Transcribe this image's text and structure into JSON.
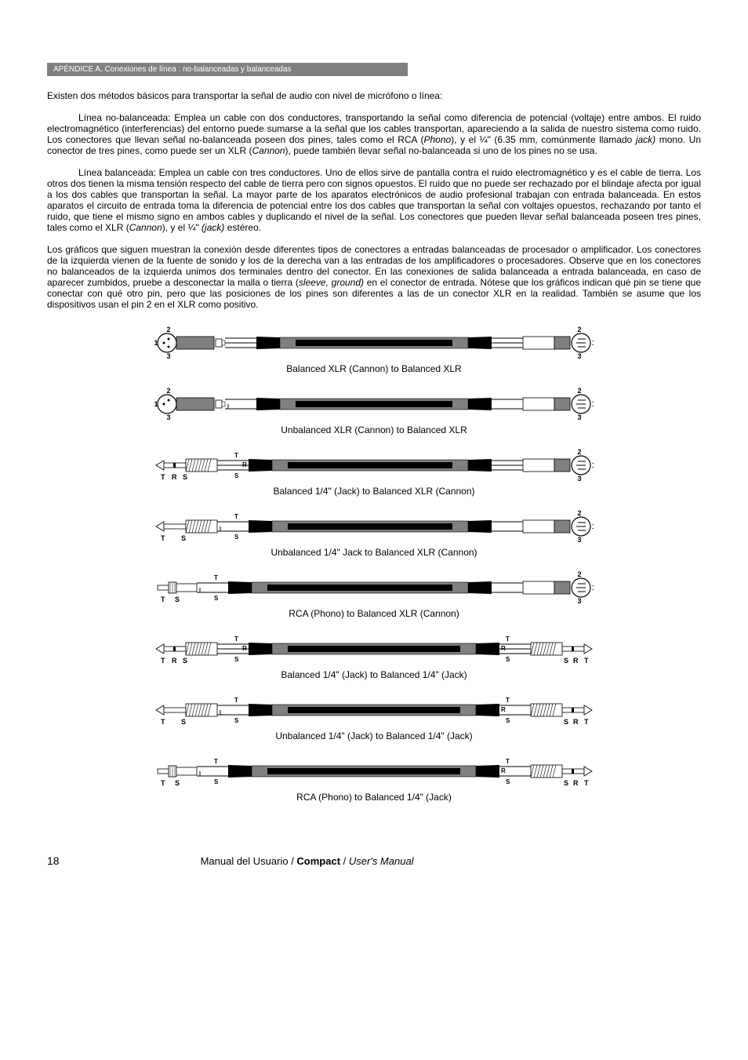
{
  "header": {
    "title": "APÉNDICE A. Conexiones de línea : no-balanceadas y balanceadas"
  },
  "intro": "Existen dos métodos básicos para transportar la señal de audio con nivel de micrófono o línea:",
  "para1_a": "Línea no-balanceada: Emplea un cable con dos conductores, transportando la señal como diferencia de potencial (voltaje) entre ambos. El ruido electromagnético (interferencias) del entorno puede sumarse a la señal que los cables transportan, apareciendo a la salida de nuestro sistema como ruido. Los conectores que llevan señal no-balanceada poseen dos pines, tales como el RCA (",
  "para1_phono": "Phono",
  "para1_b": "), y el ¼\" (6.35 mm, comúnmente llamado ",
  "para1_jack": "jack)",
  "para1_c": " mono. Un conector de tres pines, como puede ser un XLR (",
  "para1_cannon": "Cannon",
  "para1_d": "), puede también llevar señal no-balanceada si uno de los pines no se usa.",
  "para2_a": "Línea balanceada: Emplea un cable con tres conductores. Uno de ellos sirve de pantalla contra el ruido electromagnético y es el cable de tierra. Los otros dos tienen la misma tensión respecto del cable de tierra pero con signos opuestos. El ruido que no puede ser rechazado por el blindaje afecta por igual a los dos cables que transportan la señal. La mayor parte de los aparatos electrónicos de audio profesional trabajan con entrada balanceada. En estos aparatos el circuito de entrada toma la diferencia de potencial entre los dos cables que transportan la señal con voltajes opuestos, rechazando por tanto el ruido, que tiene el mismo signo en ambos cables y duplicando el nivel de la señal. Los conectores que pueden llevar señal balanceada poseen tres pines, tales como el XLR (",
  "para2_cannon": "Cannon",
  "para2_b": "), y el ¼\" ",
  "para2_jack": "(jack)",
  "para2_c": " estéreo.",
  "para3_a": "Los gráficos que siguen muestran la conexión desde diferentes tipos de conectores a entradas balanceadas de procesador o amplificador. Los conectores de la izquierda vienen de la fuente de sonido y los de la derecha van a las entradas de los amplificadores o procesadores. Observe que en los conectores no balanceados de la izquierda unimos dos terminales dentro del conector. En las conexiones de salida balanceada a entrada balanceada, en caso de aparecer zumbidos, pruebe a desconectar la malla o tierra (",
  "para3_sleeve": "sleeve, ground)",
  "para3_b": " en el conector de entrada. Nótese que los gráficos indican qué pin se tiene que conectar con qué otro pin, pero que las posiciones de los pines son diferentes a las de un conector XLR en la realidad. También se asume que los dispositivos usan el pin 2 en el XLR como positivo.",
  "diagrams": [
    {
      "caption": "Balanced XLR (Cannon) to Balanced XLR",
      "left": "xlr3",
      "right": "xlr",
      "wires": 3
    },
    {
      "caption": "Unbalanced XLR (Cannon) to Balanced XLR",
      "left": "xlr2",
      "right": "xlr",
      "wires": 2
    },
    {
      "caption": "Balanced 1/4\" (Jack) to Balanced XLR (Cannon)",
      "left": "trs",
      "right": "xlr",
      "wires": 3
    },
    {
      "caption": "Unbalanced 1/4\" Jack to Balanced XLR (Cannon)",
      "left": "ts",
      "right": "xlr",
      "wires": 2
    },
    {
      "caption": "RCA (Phono) to Balanced XLR (Cannon)",
      "left": "rca",
      "right": "xlr",
      "wires": 2
    },
    {
      "caption": "Balanced 1/4\" (Jack) to Balanced 1/4\" (Jack)",
      "left": "trs",
      "right": "trs",
      "wires": 3
    },
    {
      "caption": "Unbalanced 1/4\" (Jack) to Balanced 1/4\" (Jack)",
      "left": "ts",
      "right": "trs",
      "wires": 2
    },
    {
      "caption": "RCA (Phono) to Balanced 1/4\" (Jack)",
      "left": "rca",
      "right": "trs",
      "wires": 2
    }
  ],
  "colors": {
    "cable_outer": "#808080",
    "cable_inner_dark": "#000000",
    "connector_white": "#ffffff",
    "connector_black": "#000000",
    "connector_gray": "#808080",
    "stroke": "#000000",
    "text": "#000000"
  },
  "footer": {
    "page": "18",
    "text_a": "Manual del Usuario / ",
    "text_bold": "Compact",
    "text_b": " / ",
    "text_italic": "User's Manual"
  }
}
